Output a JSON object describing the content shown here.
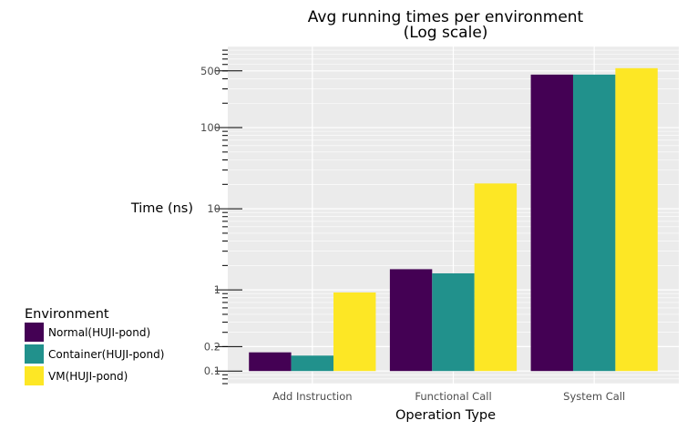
{
  "chart_data": {
    "type": "bar",
    "title": "Avg running times per environment\n(Log scale)",
    "title_lines": [
      "Avg running times per environment",
      "(Log scale)"
    ],
    "xlabel": "Operation Type",
    "ylabel": "Time (ns)",
    "y_scale": "log10",
    "ylim": [
      0.07,
      1000
    ],
    "y_ticks": [
      0.1,
      0.2,
      1,
      10,
      100,
      500
    ],
    "y_tick_labels": [
      "0.1",
      "0.2",
      "1",
      "10",
      "100",
      "500"
    ],
    "categories": [
      "Add Instruction",
      "Functional Call",
      "System Call"
    ],
    "series": [
      {
        "name": "Normal(HUJI-pond)",
        "color": "#440154",
        "values": [
          0.17,
          1.8,
          450
        ]
      },
      {
        "name": "Container(HUJI-pond)",
        "color": "#21918c",
        "values": [
          0.155,
          1.6,
          450
        ]
      },
      {
        "name": "VM(HUJI-pond)",
        "color": "#fde725",
        "values": [
          0.93,
          20.5,
          540
        ]
      }
    ],
    "legend": {
      "title": "Environment",
      "position": "left-bottom"
    },
    "grid": true,
    "panel_background": "#ebebeb"
  }
}
